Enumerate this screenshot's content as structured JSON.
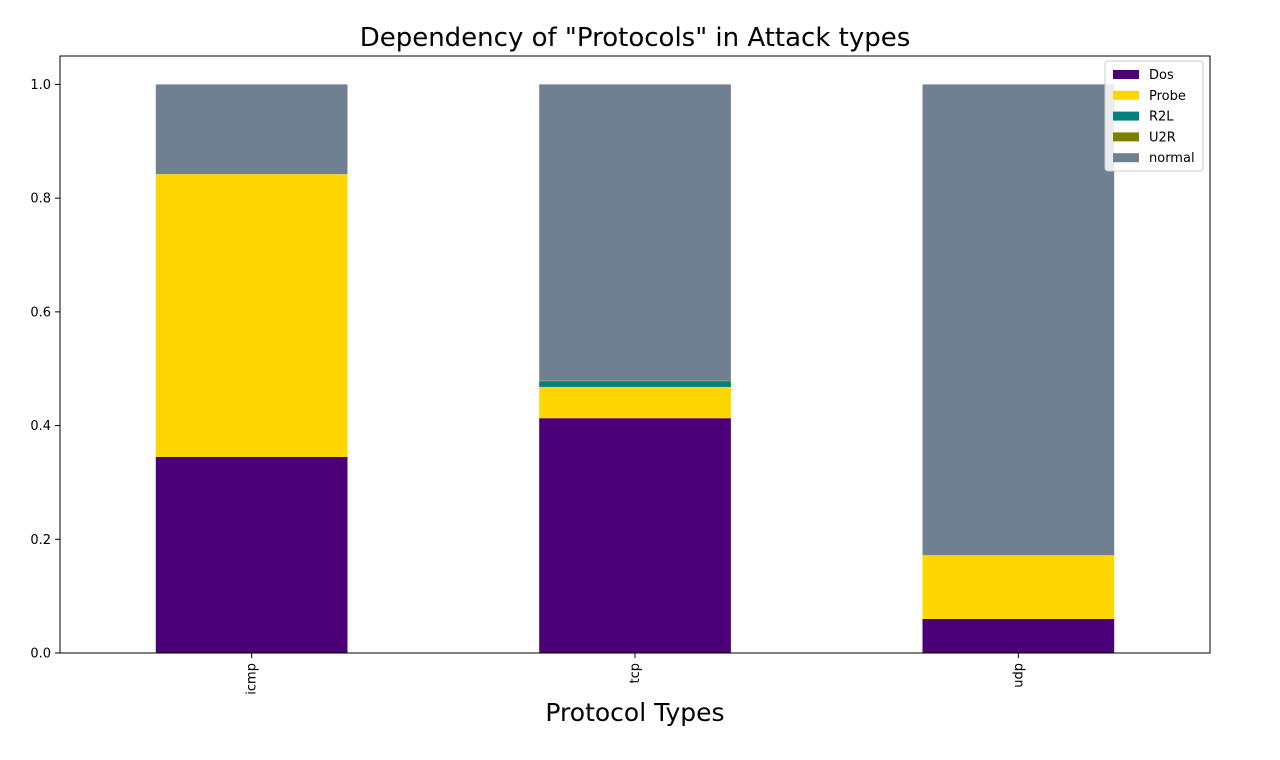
{
  "chart_data": {
    "type": "bar",
    "stacked": true,
    "title": "Dependency of \"Protocols\" in Attack types",
    "xlabel": "Protocol Types",
    "ylabel": "",
    "categories": [
      "icmp",
      "tcp",
      "udp"
    ],
    "ylim": [
      0,
      1.05
    ],
    "yticks": [
      "0.0",
      "0.2",
      "0.4",
      "0.6",
      "0.8",
      "1.0"
    ],
    "grid": false,
    "legend_position": "top-right",
    "series": [
      {
        "name": "Dos",
        "color": "#4b0078",
        "values": [
          0.345,
          0.413,
          0.06
        ]
      },
      {
        "name": "Probe",
        "color": "#ffd700",
        "values": [
          0.497,
          0.055,
          0.112
        ]
      },
      {
        "name": "R2L",
        "color": "#00807f",
        "values": [
          0.0,
          0.01,
          0.0
        ]
      },
      {
        "name": "U2R",
        "color": "#808000",
        "values": [
          0.0,
          0.001,
          0.0
        ]
      },
      {
        "name": "normal",
        "color": "#708090",
        "values": [
          0.158,
          0.521,
          0.828
        ]
      }
    ]
  }
}
